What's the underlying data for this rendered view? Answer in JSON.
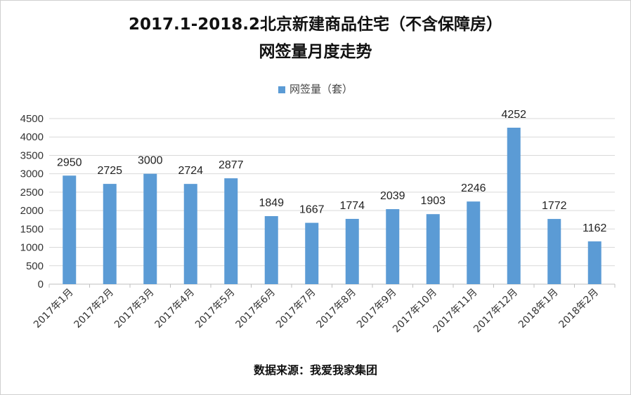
{
  "chart_data": {
    "type": "bar",
    "title_line1": "2017.1-2018.2北京新建商品住宅（不含保障房）",
    "title_line2": "网签量月度走势",
    "legend": [
      "网签量（套）"
    ],
    "categories": [
      "2017年1月",
      "2017年2月",
      "2017年3月",
      "2017年4月",
      "2017年5月",
      "2017年6月",
      "2017年7月",
      "2017年8月",
      "2017年9月",
      "2017年10月",
      "2017年11月",
      "2017年12月",
      "2018年1月",
      "2018年2月"
    ],
    "series": [
      {
        "name": "网签量（套）",
        "values": [
          2950,
          2725,
          3000,
          2724,
          2877,
          1849,
          1667,
          1774,
          2039,
          1903,
          2246,
          4252,
          1772,
          1162
        ],
        "color": "#5b9bd5"
      }
    ],
    "ylim": [
      0,
      4500
    ],
    "yticks": [
      0,
      500,
      1000,
      1500,
      2000,
      2500,
      3000,
      3500,
      4000,
      4500
    ],
    "grid": true,
    "legend_position": "top-center",
    "source": "数据来源：我爱我家集团"
  }
}
